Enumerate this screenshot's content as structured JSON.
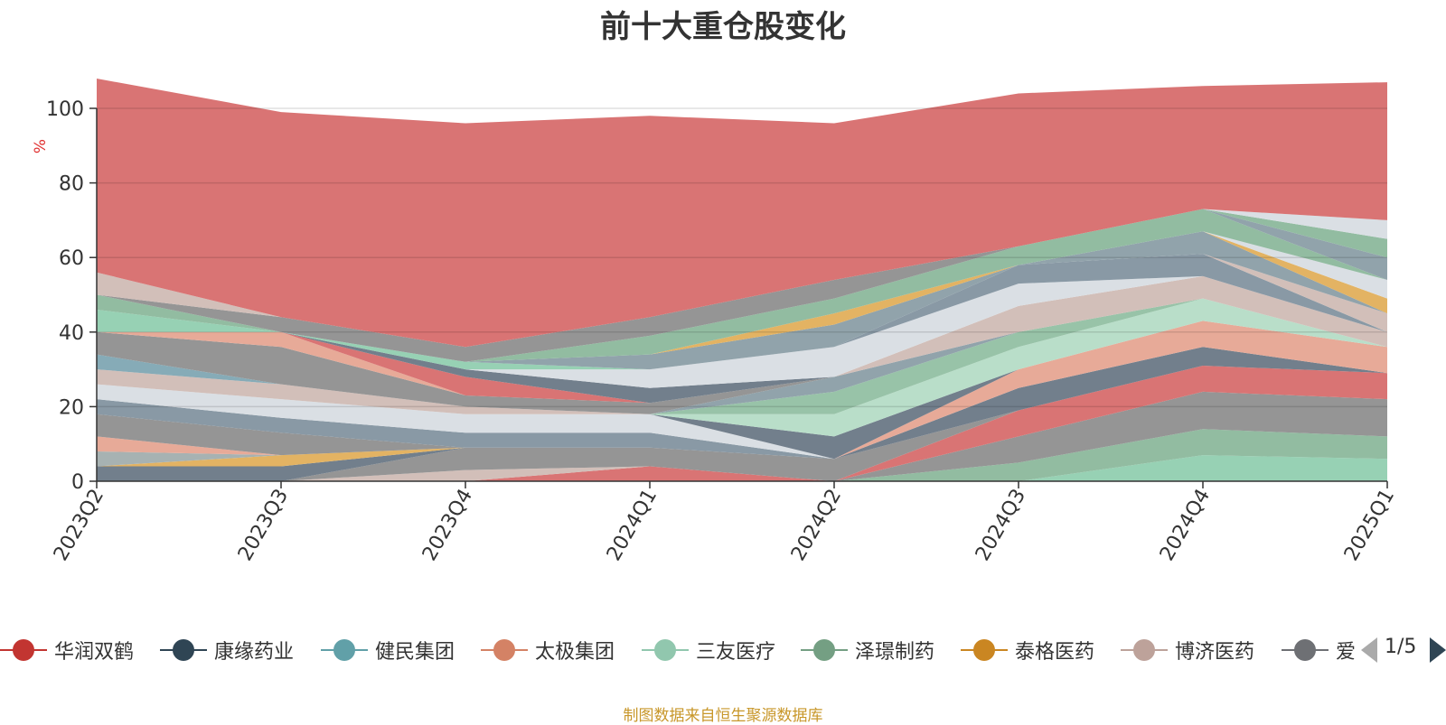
{
  "chart_data": {
    "type": "area",
    "stacked": true,
    "title": "前十大重仓股变化",
    "ylabel": "%",
    "ylim": [
      0,
      100
    ],
    "yticks": [
      0,
      20,
      40,
      60,
      80,
      100
    ],
    "categories": [
      "2023Q2",
      "2023Q3",
      "2023Q4",
      "2024Q1",
      "2024Q2",
      "2024Q3",
      "2024Q4",
      "2025Q1"
    ],
    "series": [
      {
        "name": "",
        "color": "#91cfb0",
        "values": [
          0,
          0,
          0,
          0,
          0,
          0,
          7,
          6
        ]
      },
      {
        "name": "",
        "color": "#8cb89c",
        "values": [
          0,
          0,
          0,
          0,
          0,
          5,
          7,
          6
        ]
      },
      {
        "name": "",
        "color": "#8f8f8f",
        "values": [
          0,
          0,
          0,
          0,
          0,
          7,
          10,
          10
        ]
      },
      {
        "name": "",
        "color": "#d76d6d",
        "values": [
          0,
          0,
          0,
          4,
          0,
          7,
          7,
          7
        ]
      },
      {
        "name": "",
        "color": "#d0bcb5",
        "values": [
          0,
          0,
          3,
          0,
          0,
          0,
          0,
          0
        ]
      },
      {
        "name": "",
        "color": "#8f8f8f",
        "values": [
          0,
          0,
          6,
          5,
          6,
          0,
          0,
          0
        ]
      },
      {
        "name": "",
        "color": "#6a7886",
        "values": [
          4,
          4,
          0,
          0,
          0,
          6,
          5,
          0
        ]
      },
      {
        "name": "",
        "color": "#e2af5b",
        "values": [
          0,
          3,
          0,
          0,
          0,
          0,
          0,
          0
        ]
      },
      {
        "name": "",
        "color": "#a2aeae",
        "values": [
          4,
          0,
          0,
          0,
          0,
          0,
          0,
          0
        ]
      },
      {
        "name": "",
        "color": "#e6a592",
        "values": [
          4,
          0,
          0,
          0,
          0,
          5,
          7,
          7
        ]
      },
      {
        "name": "",
        "color": "#8f8f8f",
        "values": [
          6,
          6,
          0,
          0,
          0,
          0,
          0,
          0
        ]
      },
      {
        "name": "",
        "color": "#8393a0",
        "values": [
          4,
          4,
          4,
          4,
          0,
          0,
          0,
          0
        ]
      },
      {
        "name": "",
        "color": "#d8dde3",
        "values": [
          4,
          5,
          5,
          5,
          0,
          0,
          0,
          0
        ]
      },
      {
        "name": "",
        "color": "#6a7886",
        "values": [
          0,
          0,
          0,
          0,
          6,
          0,
          0,
          0
        ]
      },
      {
        "name": "",
        "color": "#b5dcc6",
        "values": [
          0,
          0,
          0,
          0,
          6,
          6,
          6,
          0
        ]
      },
      {
        "name": "",
        "color": "#92c0a3",
        "values": [
          0,
          0,
          0,
          0,
          6,
          4,
          0,
          0
        ]
      },
      {
        "name": "",
        "color": "#8b9ea7",
        "values": [
          0,
          0,
          0,
          0,
          4,
          0,
          0,
          0
        ]
      },
      {
        "name": "",
        "color": "#d0bcb5",
        "values": [
          4,
          4,
          2,
          0,
          0,
          7,
          6,
          4
        ]
      },
      {
        "name": "",
        "color": "#7fa7b3",
        "values": [
          4,
          0,
          0,
          0,
          0,
          0,
          0,
          0
        ]
      },
      {
        "name": "",
        "color": "#8f8f8f",
        "values": [
          6,
          10,
          3,
          3,
          0,
          0,
          0,
          0
        ]
      },
      {
        "name": "",
        "color": "#e6a592",
        "values": [
          0,
          4,
          0,
          0,
          0,
          0,
          0,
          0
        ]
      },
      {
        "name": "",
        "color": "#d76d6d",
        "values": [
          0,
          0,
          5,
          0,
          0,
          0,
          0,
          0
        ]
      },
      {
        "name": "",
        "color": "#6a7886",
        "values": [
          0,
          0,
          2,
          4,
          0,
          0,
          0,
          0
        ]
      },
      {
        "name": "",
        "color": "#d8dde3",
        "values": [
          0,
          0,
          0,
          5,
          8,
          6,
          0,
          0
        ]
      },
      {
        "name": "",
        "color": "#8393a0",
        "values": [
          0,
          0,
          0,
          0,
          0,
          5,
          6,
          0
        ]
      },
      {
        "name": "",
        "color": "#d0bcb5",
        "values": [
          0,
          0,
          0,
          0,
          0,
          0,
          0,
          5
        ]
      },
      {
        "name": "",
        "color": "#91cfb0",
        "values": [
          0,
          0,
          2,
          0,
          0,
          0,
          0,
          0
        ]
      },
      {
        "name": "",
        "color": "#8b9ea7",
        "values": [
          0,
          0,
          0,
          4,
          6,
          0,
          6,
          0
        ]
      },
      {
        "name": "",
        "color": "#e2af5b",
        "values": [
          0,
          0,
          0,
          0,
          3,
          0,
          0,
          4
        ]
      },
      {
        "name": "",
        "color": "#91cfb0",
        "values": [
          6,
          0,
          0,
          0,
          0,
          0,
          0,
          0
        ]
      },
      {
        "name": "",
        "color": "#8cb89c",
        "values": [
          4,
          0,
          0,
          0,
          0,
          0,
          0,
          0
        ]
      },
      {
        "name": "",
        "color": "#d8dde3",
        "values": [
          0,
          0,
          0,
          0,
          0,
          0,
          0,
          5
        ]
      },
      {
        "name": "",
        "color": "#8cb89c",
        "values": [
          0,
          0,
          0,
          5,
          4,
          5,
          6,
          0
        ]
      },
      {
        "name": "",
        "color": "#8b9ea7",
        "values": [
          0,
          0,
          0,
          0,
          0,
          0,
          0,
          6
        ]
      },
      {
        "name": "",
        "color": "#8f8f8f",
        "values": [
          0,
          4,
          4,
          5,
          5,
          0,
          0,
          0
        ]
      },
      {
        "name": "",
        "color": "#d0bcb5",
        "values": [
          6,
          0,
          0,
          0,
          0,
          0,
          0,
          0
        ]
      },
      {
        "name": "",
        "color": "#8cb89c",
        "values": [
          0,
          0,
          0,
          0,
          0,
          0,
          0,
          5
        ]
      },
      {
        "name": "",
        "color": "#d8dde3",
        "values": [
          0,
          0,
          0,
          0,
          0,
          0,
          0,
          5
        ]
      },
      {
        "name": "",
        "color": "#d76d6d",
        "values": [
          52,
          55,
          60,
          54,
          42,
          41,
          33,
          37
        ]
      }
    ]
  },
  "legend": {
    "items": [
      {
        "label": "华润双鹤",
        "color": "#c23531"
      },
      {
        "label": "康缘药业",
        "color": "#2f4554"
      },
      {
        "label": "健民集团",
        "color": "#61a0a8"
      },
      {
        "label": "太极集团",
        "color": "#d48265"
      },
      {
        "label": "三友医疗",
        "color": "#91c7ae"
      },
      {
        "label": "泽璟制药",
        "color": "#749f83"
      },
      {
        "label": "泰格医药",
        "color": "#ca8622"
      },
      {
        "label": "博济医药",
        "color": "#bda29a"
      },
      {
        "label": "爱",
        "color": "#6e7074"
      }
    ],
    "pager": "1/5"
  },
  "source": "制图数据来自恒生聚源数据库"
}
